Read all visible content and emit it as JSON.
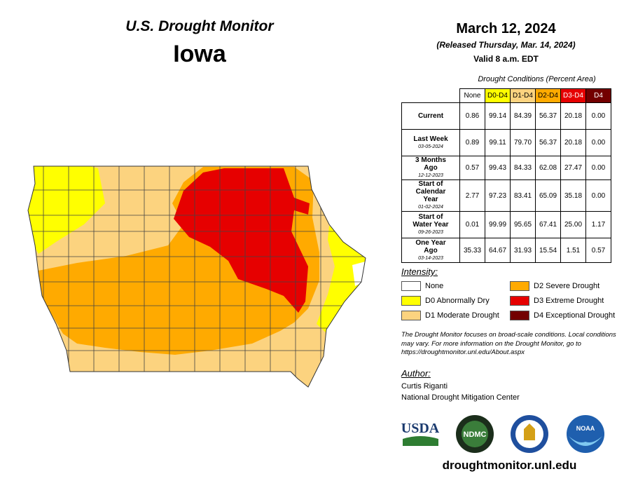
{
  "header": {
    "title": "U.S. Drought Monitor",
    "state": "Iowa",
    "date": "March 12, 2024",
    "released": "(Released Thursday, Mar. 14, 2024)",
    "valid": "Valid 8 a.m. EDT"
  },
  "table": {
    "title": "Drought Conditions (Percent Area)",
    "columns": [
      {
        "label": "None",
        "color": "#ffffff"
      },
      {
        "label": "D0-D4",
        "color": "#ffff00"
      },
      {
        "label": "D1-D4",
        "color": "#fcd37f"
      },
      {
        "label": "D2-D4",
        "color": "#ffaa00"
      },
      {
        "label": "D3-D4",
        "color": "#e60000"
      },
      {
        "label": "D4",
        "color": "#730000"
      }
    ],
    "rows": [
      {
        "label": "Current",
        "values": [
          "0.86",
          "99.14",
          "84.39",
          "56.37",
          "20.18",
          "0.00"
        ]
      },
      {
        "label": "Last Week",
        "date": "03-05-2024",
        "values": [
          "0.89",
          "99.11",
          "79.70",
          "56.37",
          "20.18",
          "0.00"
        ]
      },
      {
        "label": "3 Months Ago",
        "date": "12-12-2023",
        "values": [
          "0.57",
          "99.43",
          "84.33",
          "62.08",
          "27.47",
          "0.00"
        ]
      },
      {
        "label": "Start of Calendar Year",
        "date": "01-02-2024",
        "values": [
          "2.77",
          "97.23",
          "83.41",
          "65.09",
          "35.18",
          "0.00"
        ]
      },
      {
        "label": "Start of Water Year",
        "date": "09-26-2023",
        "values": [
          "0.01",
          "99.99",
          "95.65",
          "67.41",
          "25.00",
          "1.17"
        ]
      },
      {
        "label": "One Year Ago",
        "date": "03-14-2023",
        "values": [
          "35.33",
          "64.67",
          "31.93",
          "15.54",
          "1.51",
          "0.57"
        ]
      }
    ]
  },
  "legend": {
    "title": "Intensity:",
    "items": [
      {
        "label": "None",
        "color": "#ffffff"
      },
      {
        "label": "D0 Abnormally Dry",
        "color": "#ffff00"
      },
      {
        "label": "D1 Moderate Drought",
        "color": "#fcd37f"
      },
      {
        "label": "D2 Severe Drought",
        "color": "#ffaa00"
      },
      {
        "label": "D3 Extreme Drought",
        "color": "#e60000"
      },
      {
        "label": "D4 Exceptional Drought",
        "color": "#730000"
      }
    ]
  },
  "note": "The Drought Monitor focuses on broad-scale conditions. Local conditions may vary. For more information on the Drought Monitor, go to https://droughtmonitor.unl.edu/About.aspx",
  "author": {
    "label": "Author:",
    "lines": [
      "Curtis Riganti",
      "National Drought Mitigation Center"
    ]
  },
  "logos": [
    "USDA",
    "NDMC",
    "NOAA"
  ],
  "website": "droughtmonitor.unl.edu"
}
